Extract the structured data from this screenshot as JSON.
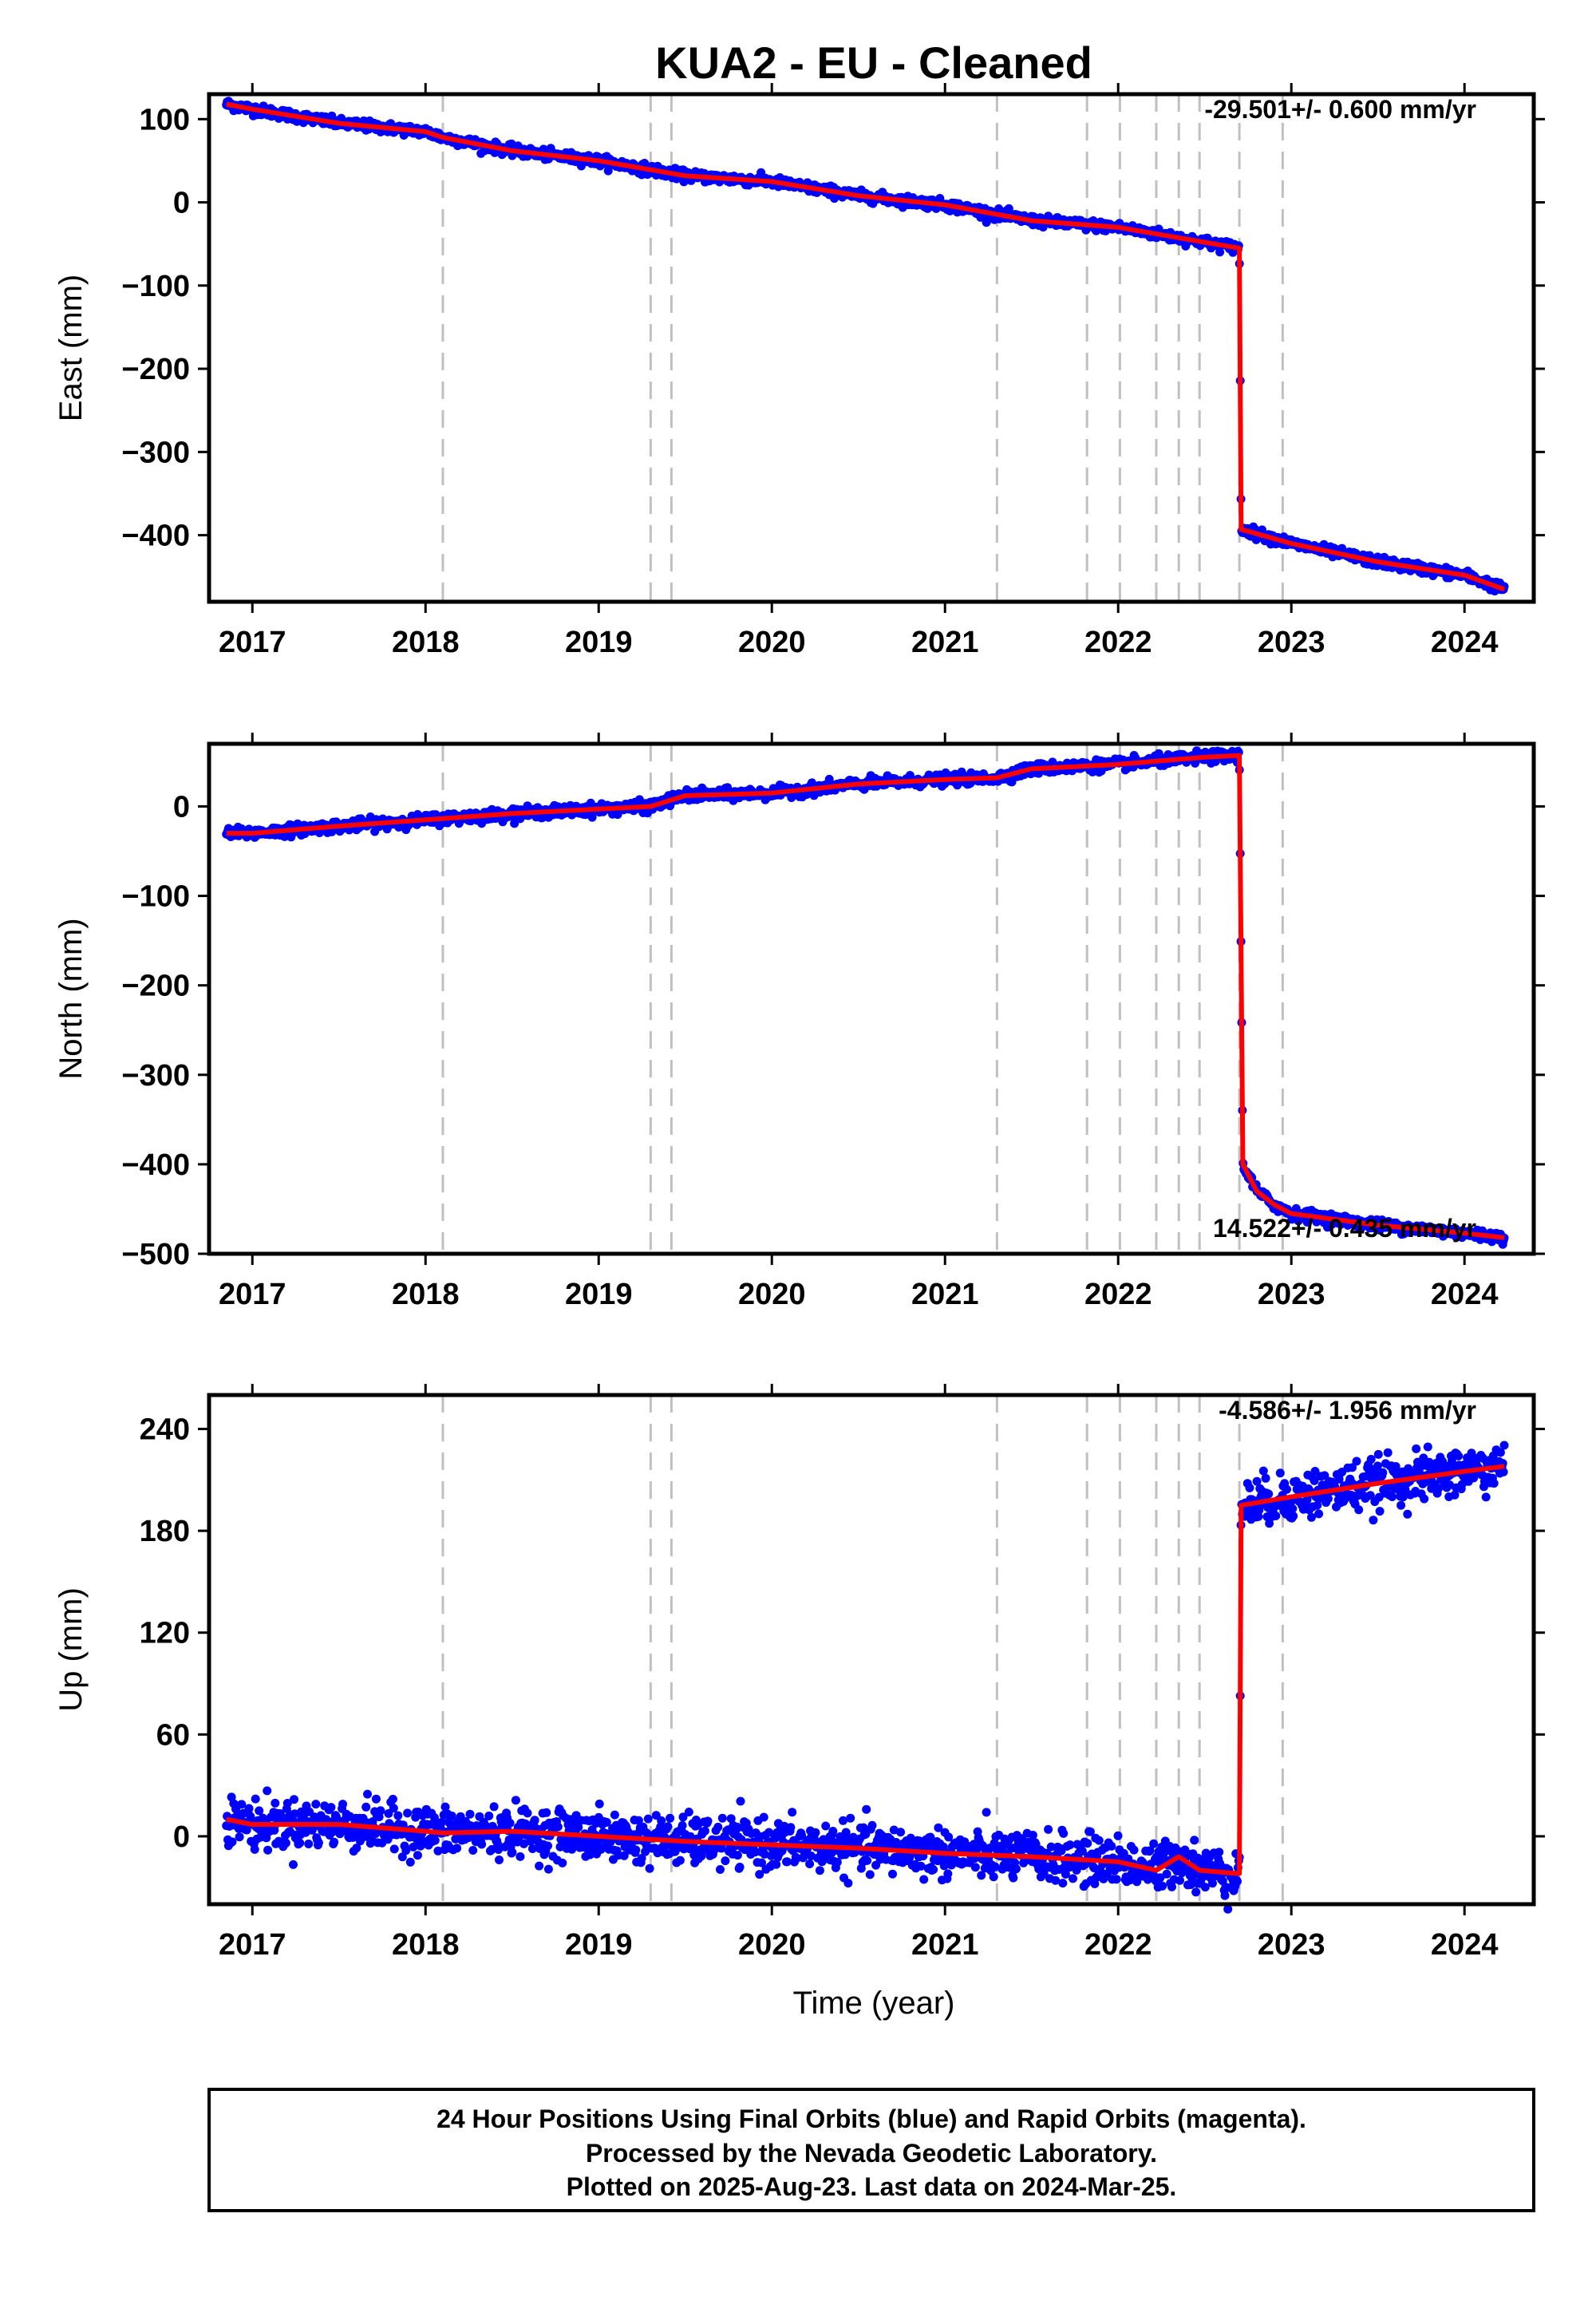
{
  "title": "KUA2  - EU - Cleaned",
  "colors": {
    "daily_positions": "#0000ff",
    "model_fit": "#ff0000",
    "event_lines": "#c0c0c0",
    "frame": "#000000"
  },
  "x_axis": {
    "label": "Time (year)",
    "range": [
      2016.75,
      2024.4
    ],
    "tick_labels": [
      "2017",
      "2018",
      "2019",
      "2020",
      "2021",
      "2022",
      "2023",
      "2024"
    ]
  },
  "footer": {
    "lines": [
      "24 Hour Positions Using Final Orbits (blue) and Rapid Orbits (magenta).",
      "Processed by the Nevada Geodetic Laboratory.",
      "Plotted on 2025-Aug-23. Last data on 2024-Mar-25."
    ]
  },
  "chart_data": [
    {
      "type": "scatter",
      "component": "east",
      "ylabel": "East (mm)",
      "ylim": [
        -480,
        130
      ],
      "y_tick_labels": [
        "100",
        "0",
        "−100",
        "−200",
        "−300",
        "−400"
      ],
      "rate_label": "-29.501+/- 0.600 mm/yr",
      "event_lines_x": [
        2018.1,
        2019.3,
        2019.42,
        2021.3,
        2021.82,
        2022.01,
        2022.22,
        2022.35,
        2022.47,
        2022.7,
        2022.95
      ],
      "series": [
        {
          "name": "Final Orbits (blue)",
          "style": "points",
          "scatter_sigma": 3,
          "x": [
            2016.85,
            2017.0,
            2017.5,
            2018.0,
            2018.1,
            2018.5,
            2019.0,
            2019.5,
            2020.0,
            2020.5,
            2021.0,
            2021.5,
            2022.0,
            2022.5,
            2022.7,
            2022.71,
            2023.0,
            2023.5,
            2024.0,
            2024.23
          ],
          "y": [
            118,
            112,
            95,
            85,
            78,
            62,
            50,
            32,
            25,
            8,
            -3,
            -22,
            -30,
            -48,
            -55,
            -393,
            -410,
            -432,
            -448,
            -465
          ]
        },
        {
          "name": "Model fit (red)",
          "style": "line",
          "x": [
            2016.85,
            2017.0,
            2017.5,
            2018.0,
            2018.1,
            2018.5,
            2019.0,
            2019.5,
            2020.0,
            2020.5,
            2021.0,
            2021.5,
            2022.0,
            2022.5,
            2022.7,
            2022.71,
            2023.0,
            2023.5,
            2024.0,
            2024.23
          ],
          "y": [
            118,
            112,
            95,
            85,
            78,
            62,
            50,
            32,
            25,
            8,
            -3,
            -22,
            -30,
            -48,
            -55,
            -393,
            -410,
            -432,
            -448,
            -465
          ]
        }
      ]
    },
    {
      "type": "scatter",
      "component": "north",
      "ylabel": "North (mm)",
      "ylim": [
        -500,
        70
      ],
      "y_tick_labels": [
        "0",
        "−100",
        "−200",
        "−300",
        "−400",
        "−500"
      ],
      "rate_label": "14.522+/- 0.435 mm/yr",
      "event_lines_x": [
        2018.1,
        2019.3,
        2019.42,
        2021.3,
        2021.82,
        2022.01,
        2022.22,
        2022.35,
        2022.47,
        2022.7,
        2022.95
      ],
      "series": [
        {
          "name": "Final Orbits (blue)",
          "style": "points",
          "scatter_sigma": 3,
          "x": [
            2016.85,
            2017.0,
            2017.5,
            2018.0,
            2018.5,
            2019.0,
            2019.3,
            2019.5,
            2020.0,
            2020.5,
            2021.0,
            2021.3,
            2021.5,
            2022.0,
            2022.5,
            2022.7,
            2022.72,
            2022.8,
            2022.9,
            2023.0,
            2023.5,
            2024.0,
            2024.23
          ],
          "y": [
            -30,
            -30,
            -22,
            -15,
            -8,
            -3,
            0,
            12,
            15,
            25,
            30,
            32,
            42,
            47,
            55,
            57,
            -400,
            -430,
            -445,
            -455,
            -468,
            -477,
            -482
          ]
        },
        {
          "name": "Model fit (red)",
          "style": "line",
          "x": [
            2016.85,
            2017.0,
            2017.5,
            2018.0,
            2018.5,
            2019.0,
            2019.3,
            2019.5,
            2020.0,
            2020.5,
            2021.0,
            2021.3,
            2021.5,
            2022.0,
            2022.5,
            2022.7,
            2022.72,
            2022.8,
            2022.9,
            2023.0,
            2023.5,
            2024.0,
            2024.23
          ],
          "y": [
            -30,
            -30,
            -22,
            -15,
            -8,
            -3,
            0,
            12,
            15,
            25,
            30,
            32,
            42,
            47,
            55,
            57,
            -400,
            -430,
            -445,
            -455,
            -468,
            -477,
            -482
          ]
        }
      ]
    },
    {
      "type": "scatter",
      "component": "up",
      "ylabel": "Up (mm)",
      "ylim": [
        -40,
        260
      ],
      "y_tick_labels": [
        "240",
        "180",
        "120",
        "60",
        "0"
      ],
      "rate_label": "-4.586+/- 1.956 mm/yr",
      "event_lines_x": [
        2018.1,
        2019.3,
        2019.42,
        2021.3,
        2021.82,
        2022.01,
        2022.22,
        2022.35,
        2022.47,
        2022.7,
        2022.95
      ],
      "series": [
        {
          "name": "Final Orbits (blue)",
          "style": "points",
          "scatter_sigma": 7,
          "x": [
            2016.85,
            2017.0,
            2017.5,
            2018.0,
            2018.1,
            2018.5,
            2019.0,
            2019.5,
            2020.0,
            2020.5,
            2021.0,
            2021.5,
            2022.0,
            2022.22,
            2022.35,
            2022.47,
            2022.7,
            2022.71,
            2023.0,
            2023.5,
            2024.0,
            2024.23
          ],
          "y": [
            10,
            7,
            7,
            3,
            2,
            3,
            0,
            -3,
            -5,
            -7,
            -10,
            -12,
            -15,
            -20,
            -12,
            -20,
            -22,
            195,
            200,
            208,
            215,
            218
          ]
        },
        {
          "name": "Model fit (red)",
          "style": "line",
          "x": [
            2016.85,
            2017.0,
            2017.5,
            2018.0,
            2018.1,
            2018.5,
            2019.0,
            2019.5,
            2020.0,
            2020.5,
            2021.0,
            2021.5,
            2022.0,
            2022.22,
            2022.35,
            2022.47,
            2022.7,
            2022.71,
            2023.0,
            2023.5,
            2024.0,
            2024.23
          ],
          "y": [
            10,
            7,
            7,
            3,
            2,
            3,
            0,
            -3,
            -5,
            -7,
            -10,
            -12,
            -15,
            -20,
            -12,
            -20,
            -22,
            195,
            200,
            208,
            215,
            218
          ]
        }
      ]
    }
  ]
}
